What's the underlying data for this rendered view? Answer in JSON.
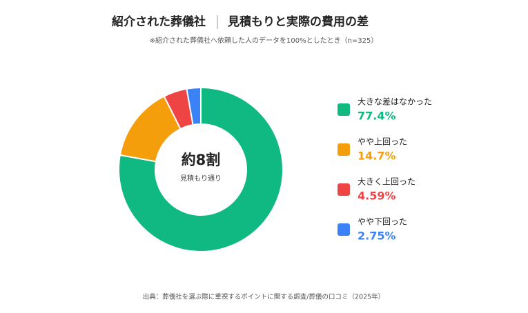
{
  "chart_data": {
    "type": "pie",
    "title": [
      "紹介された葬儀社",
      "見積もりと実際の費用の差"
    ],
    "subtitle": "※紹介された葬儀社へ依頼した人のデータを100%としたとき（n=325）",
    "center_text": "約8割",
    "center_subtext": "見積もり通り",
    "categories": [
      "大きな差はなかった",
      "やや上回った",
      "大きく上回った",
      "やや下回った"
    ],
    "values": [
      77.4,
      14.7,
      4.59,
      2.75
    ],
    "value_labels": [
      "77.4%",
      "14.7%",
      "4.59%",
      "2.75%"
    ],
    "colors": [
      "#10b981",
      "#f59e0b",
      "#ef4444",
      "#3b82f6"
    ],
    "source": "出典：葬儀社を選ぶ際に重視するポイントに関する調査/葬儀の口コミ（2025年）"
  }
}
